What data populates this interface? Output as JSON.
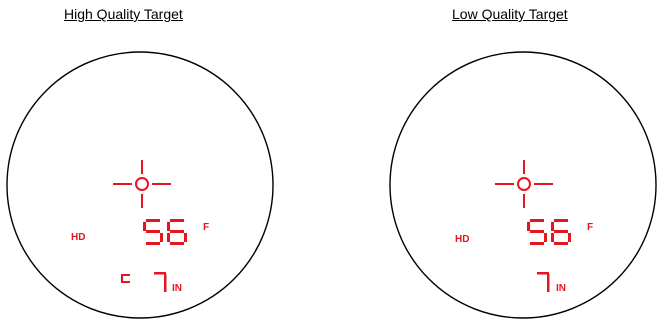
{
  "panels": [
    {
      "title": "High Quality Target",
      "distance": "56",
      "distance_unit": "F",
      "mode": "HD",
      "secondary_value": "7",
      "secondary_unit": "IN",
      "has_bracket_marker": true
    },
    {
      "title": "Low Quality Target",
      "distance": "56",
      "distance_unit": "F",
      "mode": "HD",
      "secondary_value": "7",
      "secondary_unit": "IN",
      "has_bracket_marker": false
    }
  ],
  "colors": {
    "display": "#e8141e",
    "circle": "#000000"
  }
}
